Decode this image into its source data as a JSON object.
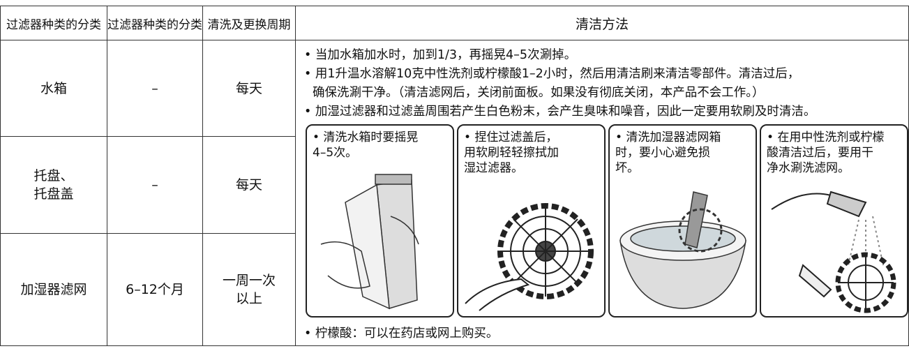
{
  "table": {
    "headers": [
      "过滤器种类的分类",
      "过滤器种类的分类",
      "清洗及更换周期",
      "清洁方法"
    ],
    "rows": [
      [
        "水箱",
        "–",
        "每天"
      ],
      [
        "托盘、\n托盘盖",
        "–",
        "每天"
      ],
      [
        "加湿器滤网",
        "6–12个月",
        "一周一次\n以上"
      ]
    ],
    "method": {
      "bullets": [
        "• 当加水箱加水时，加到1/3，再摇晃4–5次涮掉。",
        "• 用1升温水溶解10克中性洗剂或柠檬酸1–2小时，然后用清洁刷来清洁零部件。清洁过后，\n确保洗涮干净。（清洁滤网后，关闭前面板。如果没有彻底关闭，本产品不会工作。）",
        "• 加湿过滤器和过滤盖周围若产生白色粉末，会产生臭味和噪音，因此一定要用软刷及时清洁。"
      ],
      "panels": [
        "• 清洗水箱时要摇晃\n  4–5次。",
        "• 捏住过滤盖后，\n  用软刷轻轻擦拭加\n  湿过滤器。",
        "• 清洗加湿器滤网箱\n  时，要小心避免损\n  坏。",
        "• 在用中性洗剂或柠檬\n  酸清洁过后，要用干\n  净水涮洗滤网。"
      ],
      "note": "• 柠檬酸：可以在药店或网上购买。"
    }
  }
}
